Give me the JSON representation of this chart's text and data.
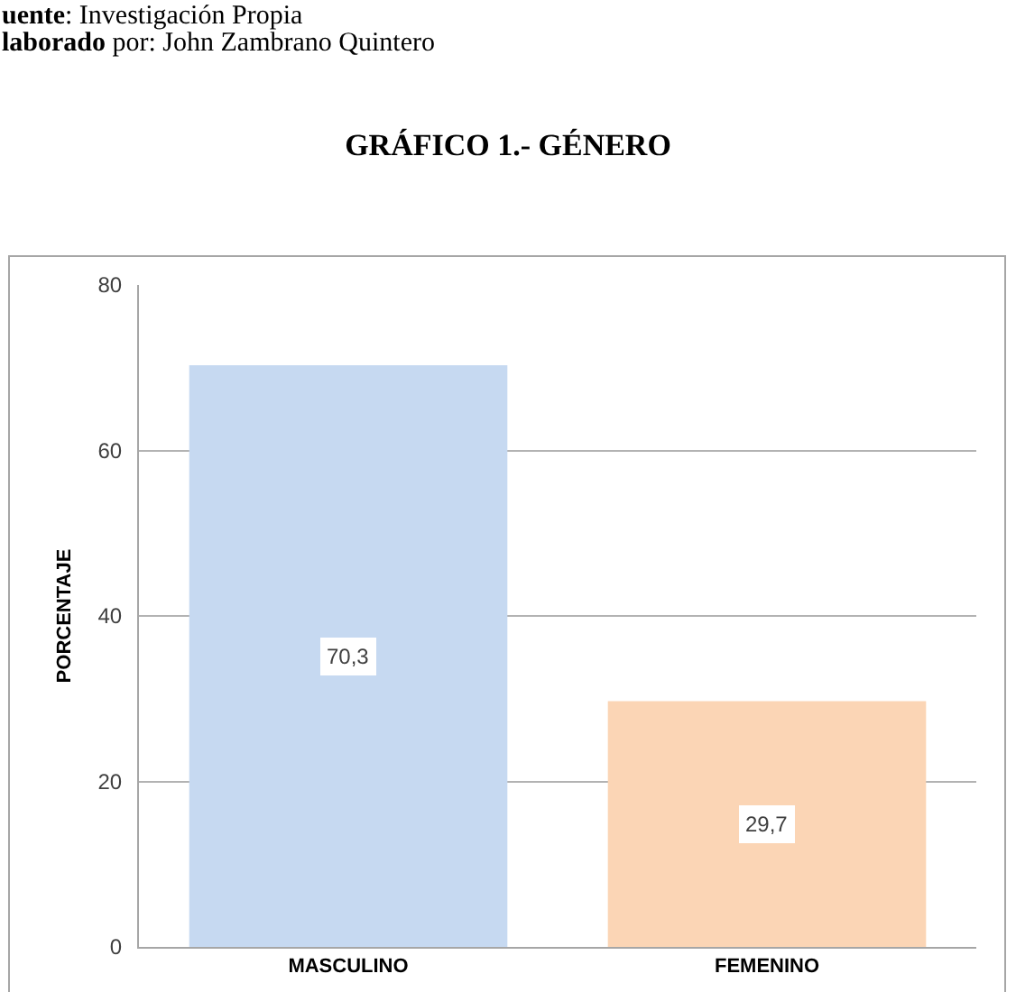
{
  "chart_data": {
    "type": "bar",
    "title": "GRÁFICO 1.- GÉNERO",
    "ylabel": "PORCENTAJE",
    "annotations": [
      "uente: Investigación Propia",
      "laborado por: John Zambrano Quintero"
    ],
    "categories": [
      "MASCULINO",
      "FEMENINO"
    ],
    "values": [
      70.3,
      29.7
    ],
    "colors": [
      "#c6d9f1",
      "#fbd5b5"
    ],
    "value_labels": [
      "70,3",
      "29,7"
    ],
    "ylim": [
      0,
      80
    ],
    "yticks": [
      0,
      20,
      40,
      60,
      80
    ],
    "grid": "y"
  }
}
